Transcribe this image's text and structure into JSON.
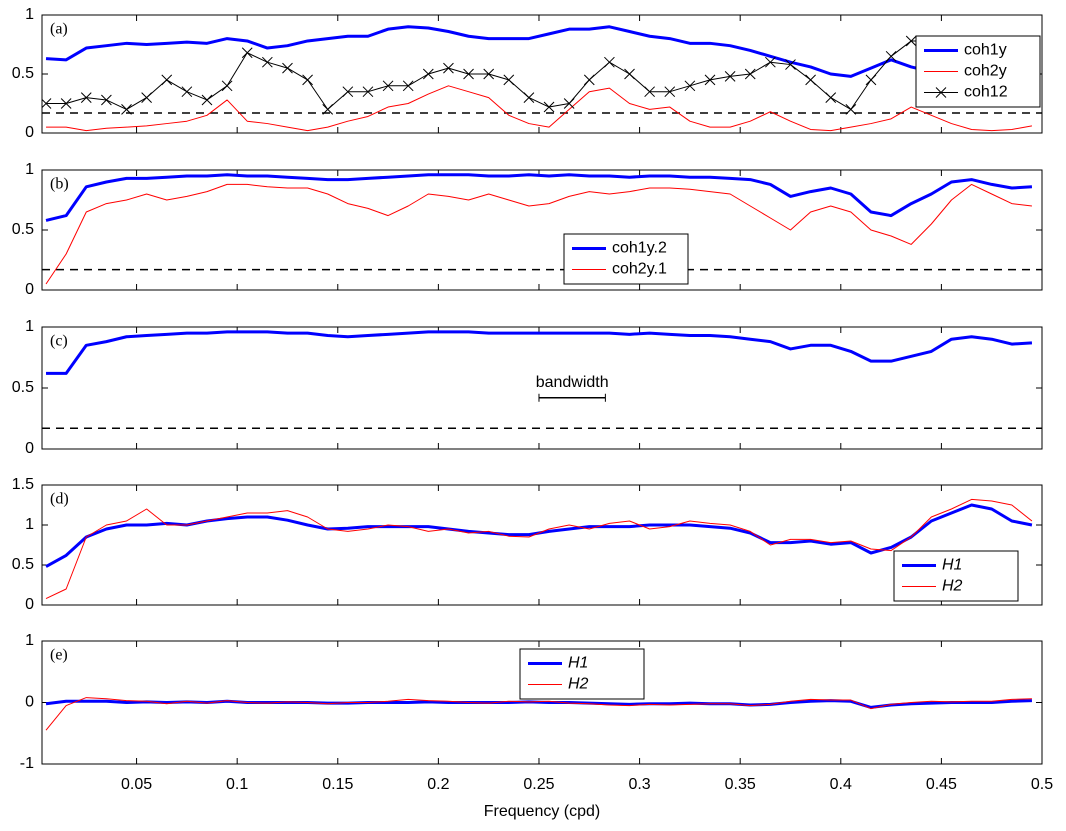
{
  "chart_data": [
    {
      "type": "line",
      "label": "(a)",
      "xlim": [
        0.003,
        0.5
      ],
      "ylim": [
        0,
        1
      ],
      "yticks": [
        0,
        0.5,
        1
      ],
      "hline": 0.17,
      "legend": "upper right",
      "x": [
        0.005,
        0.015,
        0.025,
        0.035,
        0.045,
        0.055,
        0.065,
        0.075,
        0.085,
        0.095,
        0.105,
        0.115,
        0.125,
        0.135,
        0.145,
        0.155,
        0.165,
        0.175,
        0.185,
        0.195,
        0.205,
        0.215,
        0.225,
        0.235,
        0.245,
        0.255,
        0.265,
        0.275,
        0.285,
        0.295,
        0.305,
        0.315,
        0.325,
        0.335,
        0.345,
        0.355,
        0.365,
        0.375,
        0.385,
        0.395,
        0.405,
        0.415,
        0.425,
        0.435,
        0.445,
        0.455,
        0.465,
        0.475,
        0.485,
        0.495
      ],
      "series": [
        {
          "name": "coh1y",
          "color": "#0000ff",
          "width": 3,
          "values": [
            0.63,
            0.62,
            0.72,
            0.74,
            0.76,
            0.75,
            0.76,
            0.77,
            0.76,
            0.8,
            0.78,
            0.72,
            0.74,
            0.78,
            0.8,
            0.82,
            0.82,
            0.88,
            0.9,
            0.89,
            0.86,
            0.82,
            0.8,
            0.8,
            0.8,
            0.84,
            0.88,
            0.88,
            0.9,
            0.86,
            0.82,
            0.8,
            0.76,
            0.76,
            0.74,
            0.7,
            0.65,
            0.6,
            0.56,
            0.5,
            0.48,
            0.55,
            0.62,
            0.56,
            0.52,
            0.55,
            0.54,
            0.56,
            0.58,
            0.62
          ]
        },
        {
          "name": "coh2y",
          "color": "#ff0000",
          "width": 1,
          "values": [
            0.05,
            0.05,
            0.02,
            0.04,
            0.05,
            0.06,
            0.08,
            0.1,
            0.15,
            0.28,
            0.1,
            0.08,
            0.05,
            0.02,
            0.05,
            0.1,
            0.14,
            0.22,
            0.25,
            0.33,
            0.4,
            0.35,
            0.3,
            0.15,
            0.08,
            0.05,
            0.2,
            0.35,
            0.38,
            0.25,
            0.2,
            0.22,
            0.1,
            0.05,
            0.05,
            0.1,
            0.18,
            0.1,
            0.03,
            0.02,
            0.05,
            0.08,
            0.12,
            0.22,
            0.15,
            0.08,
            0.03,
            0.02,
            0.03,
            0.06
          ]
        },
        {
          "name": "coh12",
          "color": "#000000",
          "width": 1,
          "marker": "x",
          "values": [
            0.25,
            0.25,
            0.3,
            0.28,
            0.2,
            0.3,
            0.45,
            0.35,
            0.28,
            0.4,
            0.68,
            0.6,
            0.55,
            0.45,
            0.2,
            0.35,
            0.35,
            0.4,
            0.4,
            0.5,
            0.55,
            0.5,
            0.5,
            0.45,
            0.3,
            0.22,
            0.25,
            0.45,
            0.6,
            0.5,
            0.35,
            0.35,
            0.4,
            0.45,
            0.48,
            0.5,
            0.6,
            0.58,
            0.45,
            0.3,
            0.2,
            0.45,
            0.65,
            0.78,
            0.78,
            0.72,
            0.6,
            0.55,
            0.52,
            0.5
          ]
        }
      ]
    },
    {
      "type": "line",
      "label": "(b)",
      "xlim": [
        0.003,
        0.5
      ],
      "ylim": [
        0,
        1
      ],
      "yticks": [
        0,
        0.5,
        1
      ],
      "hline": 0.17,
      "legend": "lower center",
      "x": [
        0.005,
        0.015,
        0.025,
        0.035,
        0.045,
        0.055,
        0.065,
        0.075,
        0.085,
        0.095,
        0.105,
        0.115,
        0.125,
        0.135,
        0.145,
        0.155,
        0.165,
        0.175,
        0.185,
        0.195,
        0.205,
        0.215,
        0.225,
        0.235,
        0.245,
        0.255,
        0.265,
        0.275,
        0.285,
        0.295,
        0.305,
        0.315,
        0.325,
        0.335,
        0.345,
        0.355,
        0.365,
        0.375,
        0.385,
        0.395,
        0.405,
        0.415,
        0.425,
        0.435,
        0.445,
        0.455,
        0.465,
        0.475,
        0.485,
        0.495
      ],
      "series": [
        {
          "name": "coh1y.2",
          "color": "#0000ff",
          "width": 3,
          "values": [
            0.58,
            0.62,
            0.86,
            0.9,
            0.93,
            0.93,
            0.94,
            0.95,
            0.95,
            0.96,
            0.95,
            0.95,
            0.94,
            0.93,
            0.92,
            0.92,
            0.93,
            0.94,
            0.95,
            0.96,
            0.96,
            0.96,
            0.95,
            0.95,
            0.96,
            0.95,
            0.96,
            0.95,
            0.95,
            0.94,
            0.95,
            0.95,
            0.94,
            0.94,
            0.93,
            0.92,
            0.88,
            0.78,
            0.82,
            0.85,
            0.8,
            0.65,
            0.62,
            0.72,
            0.8,
            0.9,
            0.92,
            0.88,
            0.85,
            0.86
          ]
        },
        {
          "name": "coh2y.1",
          "color": "#ff0000",
          "width": 1,
          "values": [
            0.05,
            0.3,
            0.65,
            0.72,
            0.75,
            0.8,
            0.75,
            0.78,
            0.82,
            0.88,
            0.88,
            0.86,
            0.85,
            0.85,
            0.8,
            0.72,
            0.68,
            0.62,
            0.7,
            0.8,
            0.78,
            0.75,
            0.8,
            0.75,
            0.7,
            0.72,
            0.78,
            0.82,
            0.8,
            0.82,
            0.85,
            0.85,
            0.84,
            0.82,
            0.8,
            0.7,
            0.6,
            0.5,
            0.65,
            0.7,
            0.65,
            0.5,
            0.45,
            0.38,
            0.55,
            0.75,
            0.88,
            0.8,
            0.72,
            0.7
          ]
        }
      ]
    },
    {
      "type": "line",
      "label": "(c)",
      "xlim": [
        0.003,
        0.5
      ],
      "ylim": [
        0,
        1
      ],
      "yticks": [
        0,
        0.5,
        1
      ],
      "hline": 0.17,
      "annotation": {
        "text": "bandwidth",
        "x": [
          0.25,
          0.283
        ],
        "y": 0.42
      },
      "x": [
        0.005,
        0.015,
        0.025,
        0.035,
        0.045,
        0.055,
        0.065,
        0.075,
        0.085,
        0.095,
        0.105,
        0.115,
        0.125,
        0.135,
        0.145,
        0.155,
        0.165,
        0.175,
        0.185,
        0.195,
        0.205,
        0.215,
        0.225,
        0.235,
        0.245,
        0.255,
        0.265,
        0.275,
        0.285,
        0.295,
        0.305,
        0.315,
        0.325,
        0.335,
        0.345,
        0.355,
        0.365,
        0.375,
        0.385,
        0.395,
        0.405,
        0.415,
        0.425,
        0.435,
        0.445,
        0.455,
        0.465,
        0.475,
        0.485,
        0.495
      ],
      "series": [
        {
          "color": "#0000ff",
          "width": 3,
          "values": [
            0.62,
            0.62,
            0.85,
            0.88,
            0.92,
            0.93,
            0.94,
            0.95,
            0.95,
            0.96,
            0.96,
            0.96,
            0.95,
            0.95,
            0.93,
            0.92,
            0.93,
            0.94,
            0.95,
            0.96,
            0.96,
            0.96,
            0.95,
            0.95,
            0.95,
            0.95,
            0.95,
            0.95,
            0.95,
            0.94,
            0.95,
            0.94,
            0.93,
            0.93,
            0.92,
            0.9,
            0.88,
            0.82,
            0.85,
            0.85,
            0.8,
            0.72,
            0.72,
            0.76,
            0.8,
            0.9,
            0.92,
            0.9,
            0.86,
            0.87
          ]
        }
      ]
    },
    {
      "type": "line",
      "label": "(d)",
      "xlim": [
        0.003,
        0.5
      ],
      "ylim": [
        0,
        1.5
      ],
      "yticks": [
        0,
        0.5,
        1,
        1.5
      ],
      "legend": "lower right",
      "x": [
        0.005,
        0.015,
        0.025,
        0.035,
        0.045,
        0.055,
        0.065,
        0.075,
        0.085,
        0.095,
        0.105,
        0.115,
        0.125,
        0.135,
        0.145,
        0.155,
        0.165,
        0.175,
        0.185,
        0.195,
        0.205,
        0.215,
        0.225,
        0.235,
        0.245,
        0.255,
        0.265,
        0.275,
        0.285,
        0.295,
        0.305,
        0.315,
        0.325,
        0.335,
        0.345,
        0.355,
        0.365,
        0.375,
        0.385,
        0.395,
        0.405,
        0.415,
        0.425,
        0.435,
        0.445,
        0.455,
        0.465,
        0.475,
        0.485,
        0.495
      ],
      "series": [
        {
          "name": "H1",
          "color": "#0000ff",
          "width": 3,
          "values": [
            0.48,
            0.62,
            0.85,
            0.95,
            1.0,
            1.0,
            1.02,
            1.0,
            1.05,
            1.08,
            1.1,
            1.1,
            1.06,
            1.0,
            0.95,
            0.96,
            0.98,
            0.98,
            0.98,
            0.98,
            0.95,
            0.92,
            0.9,
            0.88,
            0.88,
            0.92,
            0.95,
            0.98,
            0.98,
            0.98,
            1.0,
            1.0,
            1.0,
            0.98,
            0.96,
            0.9,
            0.78,
            0.78,
            0.8,
            0.76,
            0.78,
            0.65,
            0.72,
            0.85,
            1.05,
            1.15,
            1.25,
            1.2,
            1.05,
            1.0
          ]
        },
        {
          "name": "H2",
          "color": "#ff0000",
          "width": 1,
          "values": [
            0.08,
            0.2,
            0.85,
            1.0,
            1.05,
            1.2,
            1.0,
            1.0,
            1.05,
            1.1,
            1.15,
            1.15,
            1.18,
            1.1,
            0.95,
            0.92,
            0.95,
            1.0,
            0.98,
            0.92,
            0.95,
            0.9,
            0.92,
            0.86,
            0.85,
            0.95,
            1.0,
            0.95,
            1.02,
            1.05,
            0.95,
            0.98,
            1.05,
            1.02,
            1.0,
            0.92,
            0.75,
            0.82,
            0.82,
            0.78,
            0.8,
            0.7,
            0.68,
            0.85,
            1.1,
            1.2,
            1.32,
            1.3,
            1.25,
            1.05
          ]
        }
      ]
    },
    {
      "type": "line",
      "label": "(e)",
      "xlim": [
        0.003,
        0.5
      ],
      "ylim": [
        -1,
        1
      ],
      "yticks": [
        -1,
        0,
        1
      ],
      "legend": "upper center",
      "xticks": [
        0.05,
        0.1,
        0.15,
        0.2,
        0.25,
        0.3,
        0.35,
        0.4,
        0.45,
        0.5
      ],
      "xlabel": "Frequency (cpd)",
      "x": [
        0.005,
        0.015,
        0.025,
        0.035,
        0.045,
        0.055,
        0.065,
        0.075,
        0.085,
        0.095,
        0.105,
        0.115,
        0.125,
        0.135,
        0.145,
        0.155,
        0.165,
        0.175,
        0.185,
        0.195,
        0.205,
        0.215,
        0.225,
        0.235,
        0.245,
        0.255,
        0.265,
        0.275,
        0.285,
        0.295,
        0.305,
        0.315,
        0.325,
        0.335,
        0.345,
        0.355,
        0.365,
        0.375,
        0.385,
        0.395,
        0.405,
        0.415,
        0.425,
        0.435,
        0.445,
        0.455,
        0.465,
        0.475,
        0.485,
        0.495
      ],
      "series": [
        {
          "name": "H1",
          "color": "#0000ff",
          "width": 3,
          "values": [
            -0.02,
            0.02,
            0.02,
            0.02,
            0,
            0.01,
            0,
            0.01,
            0,
            0.02,
            0,
            0,
            0,
            0,
            -0.01,
            -0.01,
            0,
            0,
            0,
            0.01,
            0,
            0,
            0,
            0,
            0.01,
            0,
            0,
            -0.01,
            -0.02,
            -0.03,
            -0.02,
            -0.02,
            -0.01,
            -0.02,
            -0.02,
            -0.04,
            -0.03,
            0,
            0.02,
            0.03,
            0.02,
            -0.08,
            -0.04,
            -0.02,
            -0.01,
            0,
            0,
            0,
            0.02,
            0.03
          ]
        },
        {
          "name": "H2",
          "color": "#ff0000",
          "width": 1,
          "values": [
            -0.45,
            -0.05,
            0.08,
            0.06,
            0.03,
            0.02,
            -0.02,
            0.02,
            -0.01,
            0.03,
            0,
            -0.01,
            0.01,
            0,
            -0.02,
            0,
            0,
            0.02,
            0.05,
            0.03,
            0.02,
            0,
            -0.01,
            0.02,
            0.01,
            0.02,
            -0.01,
            -0.02,
            -0.04,
            -0.05,
            -0.03,
            -0.04,
            -0.03,
            -0.02,
            -0.02,
            -0.05,
            -0.03,
            0.02,
            0.05,
            0.04,
            0.04,
            -0.1,
            -0.03,
            0,
            0.02,
            0.01,
            0.02,
            0.02,
            0.05,
            0.06
          ]
        }
      ]
    }
  ]
}
